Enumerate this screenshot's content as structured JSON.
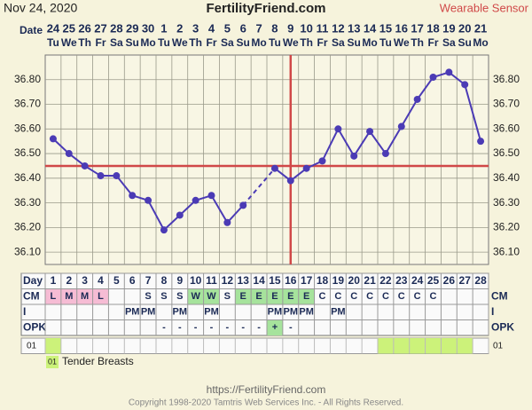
{
  "header": {
    "date": "Nov 24, 2020",
    "site": "FertilityFriend.com",
    "mode": "Wearable Sensor"
  },
  "chart_data": {
    "type": "line",
    "date_label": "Date",
    "dates": [
      24,
      25,
      26,
      27,
      28,
      29,
      30,
      1,
      2,
      3,
      4,
      5,
      6,
      7,
      8,
      9,
      10,
      11,
      12,
      13,
      14,
      15,
      16,
      17,
      18,
      19,
      20,
      21
    ],
    "weekdays": [
      "Tu",
      "We",
      "Th",
      "Fr",
      "Sa",
      "Su",
      "Mo",
      "Tu",
      "We",
      "Th",
      "Fr",
      "Sa",
      "Su",
      "Mo",
      "Tu",
      "We",
      "Th",
      "Fr",
      "Sa",
      "Su",
      "Mo",
      "Tu",
      "We",
      "Th",
      "Fr",
      "Sa",
      "Su",
      "Mo"
    ],
    "day_label": "Day",
    "days": [
      1,
      2,
      3,
      4,
      5,
      6,
      7,
      8,
      9,
      10,
      11,
      12,
      13,
      14,
      15,
      16,
      17,
      18,
      19,
      20,
      21,
      22,
      23,
      24,
      25,
      26,
      27,
      28
    ],
    "values": [
      36.56,
      36.5,
      36.45,
      36.41,
      36.41,
      36.33,
      36.31,
      36.19,
      36.25,
      36.31,
      36.33,
      36.22,
      36.29,
      null,
      36.44,
      36.39,
      36.44,
      36.47,
      36.6,
      36.49,
      36.59,
      36.5,
      36.61,
      36.72,
      36.81,
      36.83,
      36.78,
      36.55
    ],
    "color": "#4b3bb5",
    "ylim": [
      36.05,
      36.9
    ],
    "yticks": [
      {
        "value": 36.1,
        "label": "36.10"
      },
      {
        "value": 36.2,
        "label": "36.20"
      },
      {
        "value": 36.3,
        "label": "36.30"
      },
      {
        "value": 36.4,
        "label": "36.40"
      },
      {
        "value": 36.5,
        "label": "36.50"
      },
      {
        "value": 36.6,
        "label": "36.60"
      },
      {
        "value": 36.7,
        "label": "36.70"
      },
      {
        "value": 36.8,
        "label": "36.80"
      }
    ],
    "grid": true,
    "coverline": 36.45,
    "ovulation_day": 16,
    "marker_color": "#d04848",
    "rows": [
      {
        "label": "CM",
        "cells": [
          "L",
          "M",
          "M",
          "L",
          null,
          null,
          "S",
          "S",
          "S",
          "W",
          "W",
          "S",
          "E",
          "E",
          "E",
          "E",
          "E",
          "C",
          "C",
          "C",
          "C",
          "C",
          "C",
          "C",
          "C",
          null,
          null,
          null
        ]
      },
      {
        "label": "I",
        "cells": [
          null,
          null,
          null,
          null,
          null,
          "PM",
          "PM",
          null,
          "PM",
          null,
          "PM",
          null,
          null,
          null,
          "PM",
          "PM",
          "PM",
          null,
          "PM",
          null,
          null,
          null,
          null,
          null,
          null,
          null,
          null,
          null
        ]
      },
      {
        "label": "OPK",
        "cells": [
          null,
          null,
          null,
          null,
          null,
          null,
          null,
          "-",
          "-",
          "-",
          "-",
          "-",
          "-",
          "-",
          "+",
          "-",
          null,
          null,
          null,
          null,
          null,
          null,
          null,
          null,
          null,
          null,
          null,
          null
        ]
      }
    ],
    "custom_row": {
      "label": "01",
      "marked_days": [
        1,
        22,
        23,
        24,
        25,
        26,
        27
      ],
      "color": "#ccf27a"
    },
    "legend": [
      {
        "code": "01",
        "text": "Tender Breasts"
      }
    ]
  },
  "footer": {
    "url": "https://FertilityFriend.com",
    "copyright": "Copyright 1998-2020 Tamtris Web Services Inc. - All Rights Reserved."
  }
}
